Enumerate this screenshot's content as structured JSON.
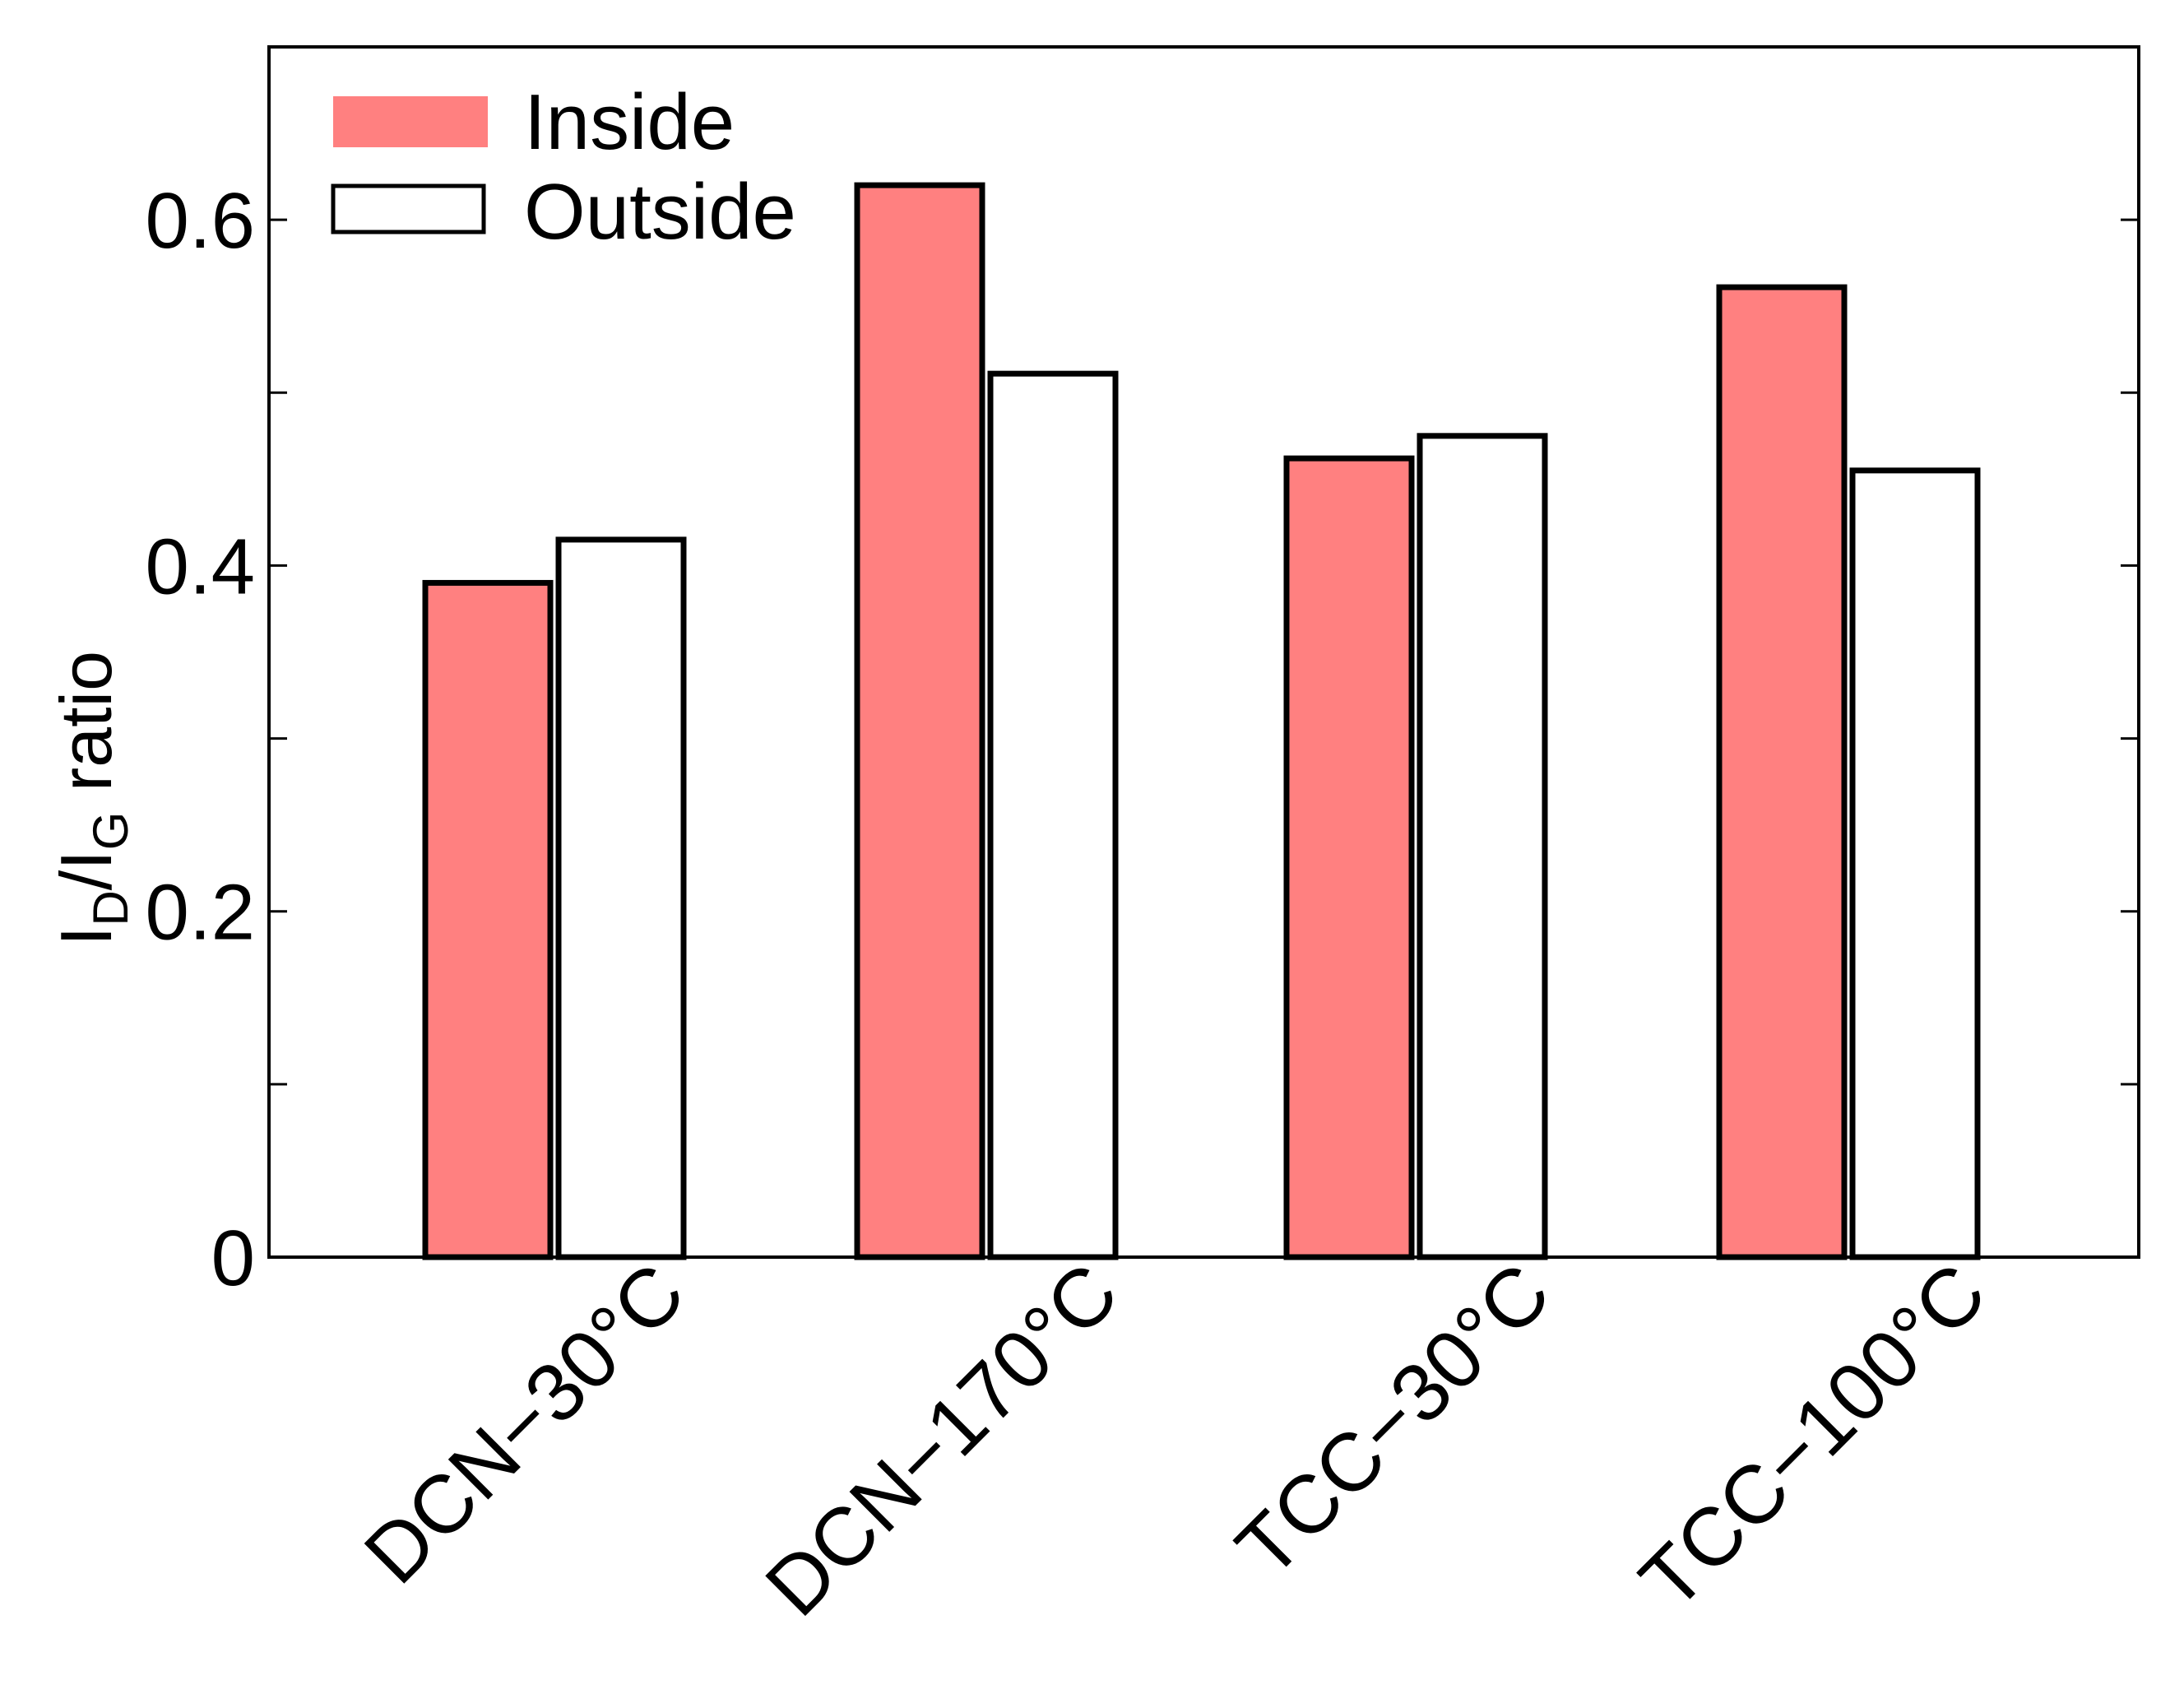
{
  "chart_data": {
    "type": "bar",
    "title": "",
    "xlabel": "",
    "ylabel": {
      "main": "I",
      "sub1": "D",
      "slash": "/I",
      "sub2": "G",
      "suffix": " ratio"
    },
    "ylim": [
      0,
      0.7
    ],
    "yticks": [
      {
        "value": 0,
        "label": "0"
      },
      {
        "value": 0.2,
        "label": "0.2"
      },
      {
        "value": 0.4,
        "label": "0.4"
      },
      {
        "value": 0.6,
        "label": "0.6"
      }
    ],
    "minor_ticks": [
      0.1,
      0.3,
      0.5
    ],
    "categories": [
      "DCN−30°C",
      "DCN−170°C",
      "TCC−30°C",
      "TCC−100°C"
    ],
    "series": [
      {
        "name": "Inside",
        "color": "#ff8080",
        "values": [
          0.39,
          0.62,
          0.462,
          0.561
        ]
      },
      {
        "name": "Outside",
        "color": "#ffffff",
        "values": [
          0.415,
          0.511,
          0.475,
          0.455
        ]
      }
    ],
    "legend": "top-left",
    "grid": false
  }
}
